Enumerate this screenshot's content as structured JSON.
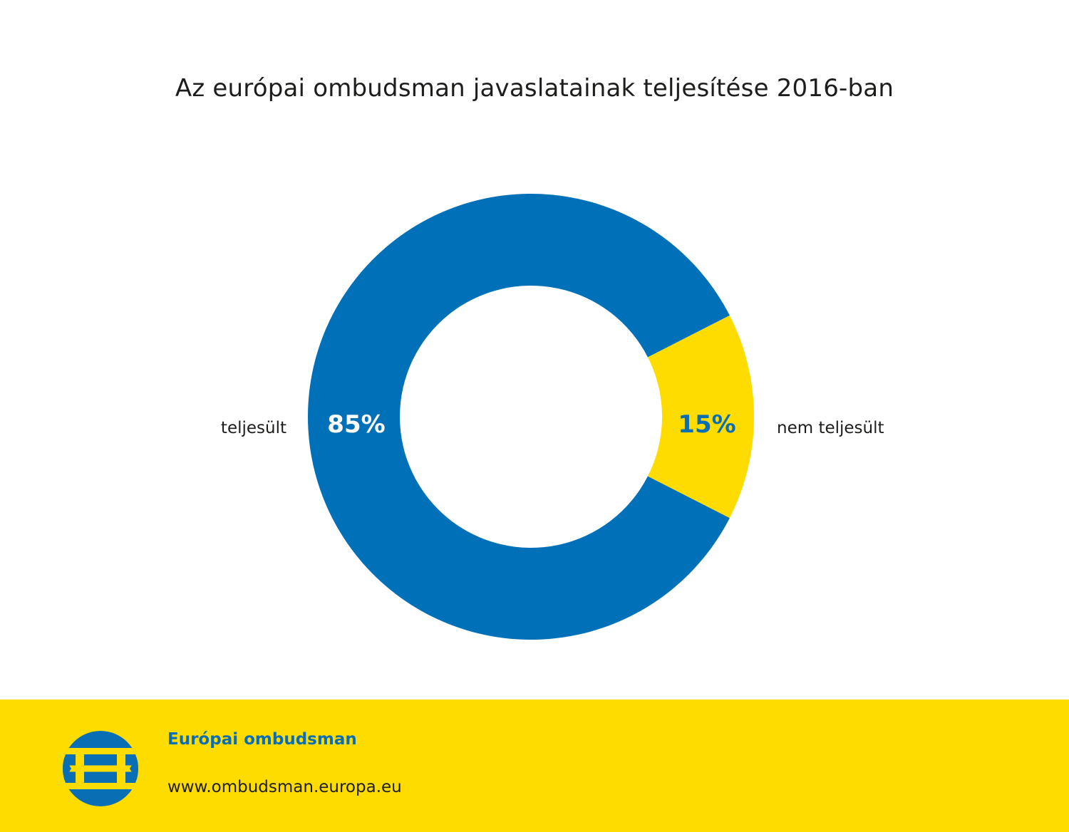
{
  "chart_data": {
    "type": "pie",
    "title": "Az európai ombudsman javaslatainak teljesítése 2016-ban",
    "categories": [
      "teljesült",
      "nem teljesült"
    ],
    "values": [
      85,
      15
    ],
    "value_labels": [
      "85%",
      "15%"
    ],
    "colors": [
      "#0070b8",
      "#ffdc00"
    ],
    "label_colors": [
      "#ffffff",
      "#0a6eb4"
    ],
    "donut": true,
    "legend": "none"
  },
  "footer": {
    "org_name": "Európai ombudsman",
    "url": "www.ombudsman.europa.eu",
    "logo_icon": "european-ombudsman-logo-icon",
    "background": "#ffdc00",
    "logo_color": "#0a6eb4"
  }
}
